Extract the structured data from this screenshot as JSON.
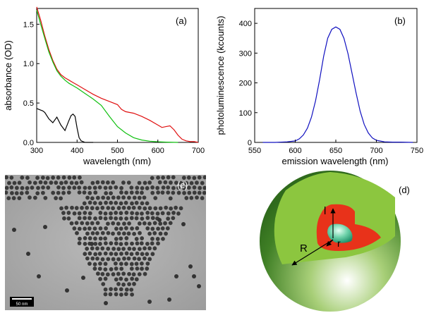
{
  "chart_data": [
    {
      "panel": "(a)",
      "type": "line",
      "xlabel": "wavelength (nm)",
      "ylabel": "absorbance (OD)",
      "xlim": [
        300,
        700
      ],
      "ylim": [
        0.0,
        1.7
      ],
      "xticks": [
        300,
        400,
        500,
        600,
        700
      ],
      "yticks": [
        "0.0",
        "0.5",
        "1.0",
        "1.5"
      ],
      "grid": false,
      "series": [
        {
          "color": "#e01010",
          "x": [
            300,
            310,
            320,
            330,
            340,
            350,
            360,
            370,
            380,
            390,
            400,
            420,
            440,
            460,
            480,
            500,
            510,
            520,
            540,
            560,
            580,
            600,
            610,
            620,
            630,
            640,
            650,
            660,
            670,
            680,
            690,
            700
          ],
          "y": [
            1.72,
            1.55,
            1.35,
            1.18,
            1.04,
            0.93,
            0.86,
            0.82,
            0.79,
            0.76,
            0.73,
            0.67,
            0.61,
            0.56,
            0.52,
            0.48,
            0.42,
            0.39,
            0.37,
            0.33,
            0.28,
            0.22,
            0.19,
            0.2,
            0.21,
            0.16,
            0.09,
            0.04,
            0.02,
            0.01,
            0.01,
            0.0
          ]
        },
        {
          "color": "#10c010",
          "x": [
            300,
            310,
            320,
            330,
            340,
            350,
            360,
            370,
            380,
            390,
            400,
            420,
            440,
            460,
            480,
            500,
            520,
            540,
            560,
            580,
            600,
            620,
            640,
            650
          ],
          "y": [
            1.68,
            1.5,
            1.32,
            1.15,
            1.02,
            0.91,
            0.84,
            0.79,
            0.75,
            0.72,
            0.69,
            0.62,
            0.55,
            0.47,
            0.33,
            0.2,
            0.12,
            0.06,
            0.03,
            0.015,
            0.008,
            0.004,
            0.001,
            0.0
          ]
        },
        {
          "color": "#000000",
          "x": [
            300,
            305,
            310,
            315,
            320,
            330,
            340,
            350,
            360,
            370,
            380,
            385,
            390,
            395,
            400,
            405,
            410,
            420,
            430,
            440
          ],
          "y": [
            0.43,
            0.42,
            0.41,
            0.4,
            0.38,
            0.3,
            0.25,
            0.32,
            0.22,
            0.15,
            0.28,
            0.34,
            0.36,
            0.33,
            0.18,
            0.06,
            0.02,
            0.0,
            0.0,
            0.0
          ]
        }
      ]
    },
    {
      "panel": "(b)",
      "type": "line",
      "xlabel": "emission wavelength (nm)",
      "ylabel": "photoluminescence (kcounts)",
      "xlim": [
        550,
        750
      ],
      "ylim": [
        0,
        450
      ],
      "xticks": [
        550,
        600,
        650,
        700,
        750
      ],
      "yticks": [
        0,
        100,
        200,
        300,
        400
      ],
      "grid": false,
      "series": [
        {
          "color": "#1010c0",
          "x": [
            560,
            575,
            590,
            600,
            605,
            610,
            615,
            620,
            625,
            630,
            635,
            640,
            645,
            650,
            655,
            660,
            665,
            670,
            675,
            680,
            685,
            690,
            695,
            700,
            710,
            720,
            730,
            745
          ],
          "y": [
            0,
            0,
            2,
            5,
            12,
            25,
            48,
            85,
            140,
            210,
            290,
            350,
            380,
            388,
            380,
            350,
            298,
            232,
            165,
            105,
            60,
            32,
            15,
            7,
            2,
            1,
            1,
            0
          ]
        }
      ]
    }
  ],
  "panel_labels": {
    "a": "(a)",
    "b": "(b)",
    "c": "(c)",
    "d": "(d)"
  },
  "tem": {
    "scale_bar_label": "50 nm"
  },
  "schematic": {
    "label_R": "R",
    "label_l": "l",
    "label_r": "r",
    "colors": {
      "outer_shell": "#8cc63f",
      "middle_shell": "#e8321a",
      "core": "#2bb08a"
    }
  }
}
